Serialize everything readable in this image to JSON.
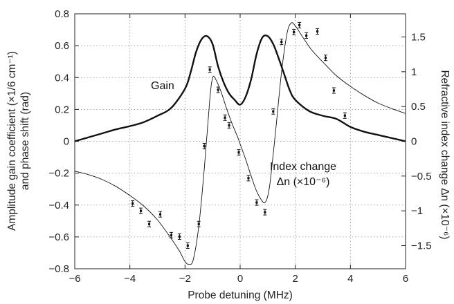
{
  "chart_data": {
    "type": "line",
    "x_axis": {
      "label": "Probe detuning (MHz)",
      "range": [
        -6,
        6
      ],
      "ticks": [
        -6,
        -4,
        -2,
        0,
        2,
        4,
        6
      ],
      "tick_labels": [
        "−6",
        "−4",
        "−2",
        "0",
        "2",
        "4",
        "6"
      ]
    },
    "y_left": {
      "label_line1": "Amplitude gain coefficient (×1/6 cm⁻¹)",
      "label_line2": "and phase shift (rad)",
      "range": [
        -0.8,
        0.8
      ],
      "ticks": [
        -0.8,
        -0.6,
        -0.4,
        -0.2,
        0,
        0.2,
        0.4,
        0.6,
        0.8
      ],
      "tick_labels": [
        "−0.8",
        "−0.6",
        "−0.4",
        "−0.2",
        "0",
        "0.2",
        "0.4",
        "0.6",
        "0.8"
      ]
    },
    "y_right": {
      "label": "Refractive index change Δn (×10⁻⁶)",
      "range": [
        -1.833,
        1.833
      ],
      "ticks": [
        -1.5,
        -1,
        -0.5,
        0,
        0.5,
        1,
        1.5
      ],
      "tick_labels": [
        "−1.5",
        "−1",
        "−0.5",
        "0",
        "0.5",
        "1",
        "1.5"
      ]
    },
    "annotations": {
      "gain": "Gain",
      "index_line1": "Index change",
      "index_line2": "Δn (×10⁻⁶)"
    },
    "series": [
      {
        "style": "thick-line",
        "x": [
          -6,
          -5.5,
          -5,
          -4.5,
          -4,
          -3.5,
          -3,
          -2.5,
          -2,
          -1.8,
          -1.6,
          -1.4,
          -1.2,
          -1.0,
          -0.8,
          -0.6,
          -0.4,
          -0.2,
          0,
          0.2,
          0.4,
          0.6,
          0.8,
          1.0,
          1.2,
          1.4,
          1.6,
          1.8,
          2.0,
          2.5,
          3.0,
          3.5,
          4.0,
          4.5,
          5.0,
          5.5,
          6.0
        ],
        "y": [
          0,
          0.025,
          0.05,
          0.075,
          0.095,
          0.12,
          0.16,
          0.21,
          0.33,
          0.43,
          0.56,
          0.64,
          0.66,
          0.61,
          0.47,
          0.37,
          0.3,
          0.26,
          0.23,
          0.28,
          0.39,
          0.55,
          0.65,
          0.66,
          0.61,
          0.52,
          0.42,
          0.32,
          0.26,
          0.19,
          0.16,
          0.14,
          0.09,
          0.06,
          0.04,
          0.02,
          0.0
        ]
      },
      {
        "style": "thin-line",
        "x": [
          -6,
          -5.5,
          -5,
          -4.5,
          -4,
          -3.5,
          -3,
          -2.5,
          -2.2,
          -2.0,
          -1.85,
          -1.7,
          -1.5,
          -1.3,
          -1.1,
          -1.0,
          -0.9,
          -0.7,
          -0.5,
          -0.3,
          -0.1,
          0,
          0.2,
          0.4,
          0.6,
          0.8,
          0.9,
          1.0,
          1.1,
          1.3,
          1.5,
          1.7,
          1.85,
          2.0,
          2.3,
          2.6,
          3.0,
          3.5,
          4.0,
          4.5,
          5.0,
          5.5,
          6.0
        ],
        "y": [
          -0.43,
          -0.48,
          -0.55,
          -0.65,
          -0.78,
          -0.93,
          -1.13,
          -1.4,
          -1.58,
          -1.73,
          -1.77,
          -1.7,
          -1.22,
          -0.39,
          0.61,
          0.91,
          0.9,
          0.72,
          0.48,
          0.26,
          0.07,
          -0.04,
          -0.26,
          -0.5,
          -0.72,
          -0.86,
          -0.88,
          -0.79,
          -0.55,
          0.2,
          0.99,
          1.55,
          1.7,
          1.66,
          1.48,
          1.31,
          1.14,
          0.94,
          0.79,
          0.66,
          0.55,
          0.47,
          0.4
        ]
      },
      {
        "style": "points-with-errorbars",
        "x": [
          -3.9,
          -3.6,
          -3.3,
          -2.9,
          -2.5,
          -2.2,
          -1.9,
          -1.5,
          -1.3,
          -1.1,
          -0.8,
          -0.55,
          -0.4,
          -0.05,
          0.3,
          0.6,
          0.9,
          1.2,
          1.5,
          1.95,
          2.15,
          2.4,
          2.8,
          3.1,
          3.4,
          3.8
        ],
        "y": [
          -0.895,
          -1.0,
          -1.19,
          -1.05,
          -1.35,
          -1.37,
          -1.5,
          -1.19,
          -0.07,
          1.03,
          0.74,
          0.34,
          0.23,
          -0.16,
          -0.53,
          -0.88,
          -1.02,
          0.43,
          1.43,
          1.57,
          1.67,
          1.52,
          1.58,
          1.2,
          0.73,
          0.37
        ],
        "err": [
          0.04,
          0.04,
          0.04,
          0.04,
          0.04,
          0.04,
          0.04,
          0.04,
          0.04,
          0.04,
          0.04,
          0.04,
          0.04,
          0.04,
          0.04,
          0.04,
          0.04,
          0.04,
          0.04,
          0.04,
          0.04,
          0.04,
          0.04,
          0.04,
          0.04,
          0.04
        ]
      }
    ],
    "grid": "dotted",
    "colors": {
      "line": "#111111",
      "grid": "#8a8a8a",
      "text": "#222222"
    }
  }
}
